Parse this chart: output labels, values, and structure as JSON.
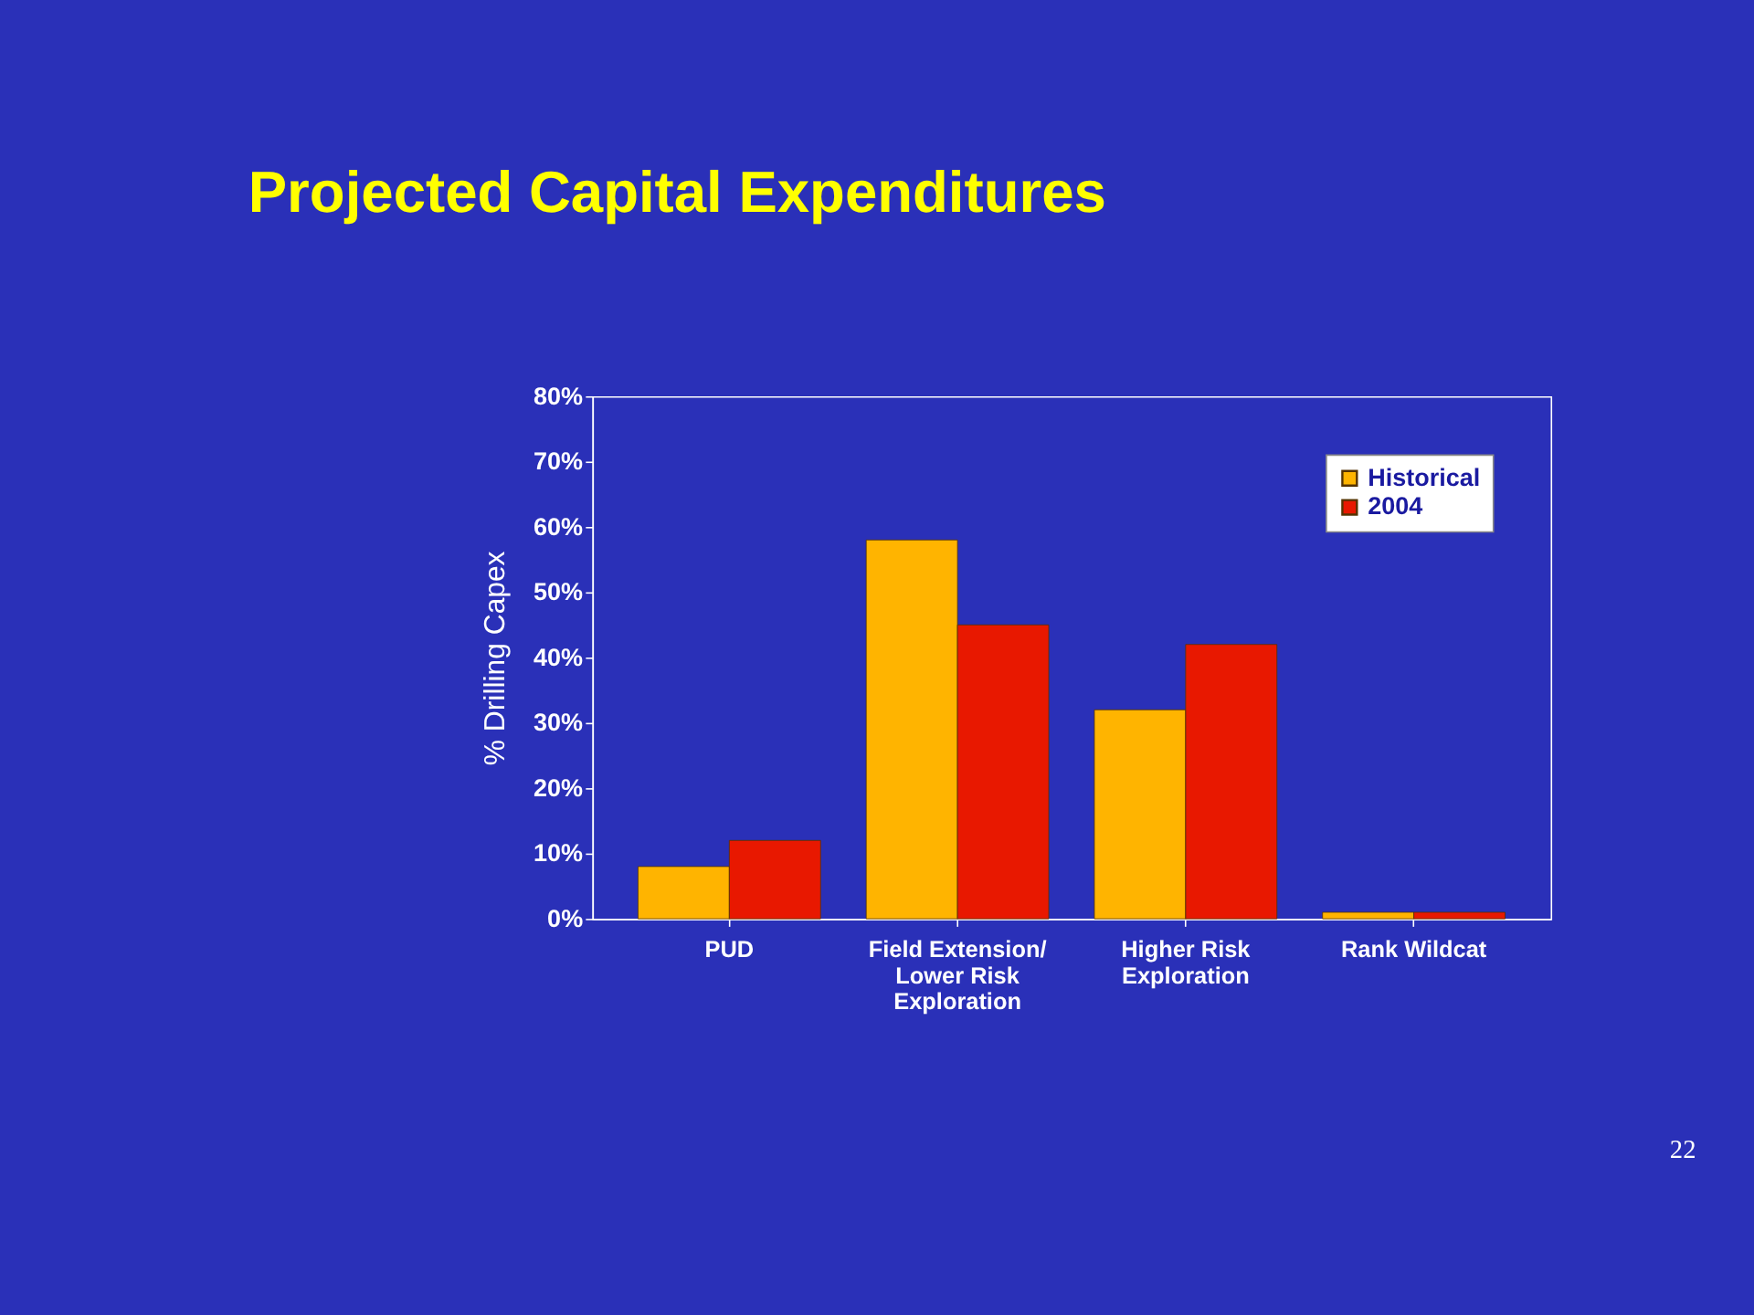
{
  "chart_data": {
    "type": "bar",
    "title": "Projected Capital Expenditures",
    "ylabel": "% Drilling Capex",
    "categories": [
      "PUD",
      "Field Extension/ Lower Risk Exploration",
      "Higher Risk Exploration",
      "Rank Wildcat"
    ],
    "series": [
      {
        "name": "Historical",
        "color": "#ffb400",
        "values": [
          8,
          58,
          32,
          1
        ]
      },
      {
        "name": "2004",
        "color": "#e81800",
        "values": [
          12,
          45,
          42,
          1
        ]
      }
    ],
    "ylim": [
      0,
      80
    ],
    "yticks": [
      {
        "value": 0,
        "label": "0%"
      },
      {
        "value": 10,
        "label": "10%"
      },
      {
        "value": 20,
        "label": "20%"
      },
      {
        "value": 30,
        "label": "30%"
      },
      {
        "value": 40,
        "label": "40%"
      },
      {
        "value": 50,
        "label": "50%"
      },
      {
        "value": 60,
        "label": "60%"
      },
      {
        "value": 70,
        "label": "70%"
      },
      {
        "value": 80,
        "label": "80%"
      }
    ],
    "legend": "top right",
    "grid": false,
    "annotations": [
      "22"
    ]
  }
}
